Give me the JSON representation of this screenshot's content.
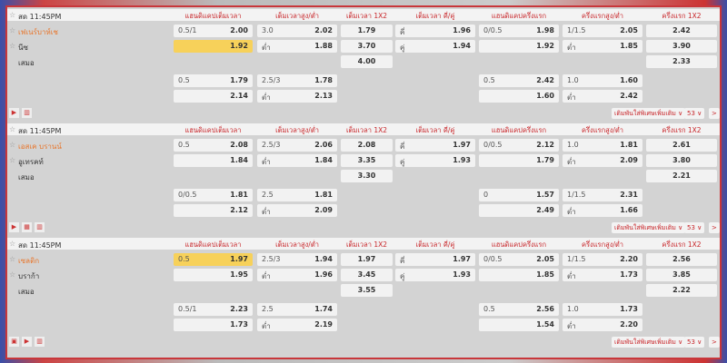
{
  "columns": [
    "แฮนดิแคปเต็มเวลา",
    "เต็มเวลาสูง/ต่ำ",
    "เต็มเวลา 1X2",
    "เต็มเวลา คี่/คู่",
    "แฮนดิแคปครึ่งแรก",
    "ครึ่งแรกสูง/ต่ำ",
    "ครึ่งแรก 1X2"
  ],
  "footer": {
    "more_bets": "เดิมพันใส่พิเศษเพิ่มเติม ∨",
    "count": "53 ∨",
    "next": ">"
  },
  "colors": {
    "accent": "#c8262a",
    "home_team": "#e8772e",
    "highlight": "#f7d15a"
  },
  "matches": [
    {
      "time": "สด 11:45PM",
      "home": "เฟเนร์บาห์เช",
      "away": "นีซ",
      "draw": "เสมอ",
      "rows": [
        [
          {
            "l": "0.5/1",
            "v": "2.00"
          },
          {
            "l": "3.0",
            "v": "2.02"
          },
          {
            "v": "1.79"
          },
          {
            "l": "คี่",
            "v": "1.96"
          },
          {
            "l": "0/0.5",
            "v": "1.98"
          },
          {
            "l": "1/1.5",
            "v": "2.05"
          },
          {
            "v": "2.42"
          }
        ],
        [
          {
            "l": "",
            "v": "1.92",
            "hl": true
          },
          {
            "l": "ต่ำ",
            "v": "1.88"
          },
          {
            "v": "3.70"
          },
          {
            "l": "คู่",
            "v": "1.94"
          },
          {
            "l": "",
            "v": "1.92"
          },
          {
            "l": "ต่ำ",
            "v": "1.85"
          },
          {
            "v": "3.90"
          }
        ],
        [
          null,
          null,
          {
            "v": "4.00"
          },
          null,
          null,
          null,
          {
            "v": "2.33"
          }
        ],
        [
          {
            "l": "0.5",
            "v": "1.79"
          },
          {
            "l": "2.5/3",
            "v": "1.78"
          },
          null,
          null,
          {
            "l": "0.5",
            "v": "2.42"
          },
          {
            "l": "1.0",
            "v": "1.60"
          },
          null
        ],
        [
          {
            "l": "",
            "v": "2.14"
          },
          {
            "l": "ต่ำ",
            "v": "2.13"
          },
          null,
          null,
          {
            "l": "",
            "v": "1.60"
          },
          {
            "l": "ต่ำ",
            "v": "2.42"
          },
          null
        ]
      ],
      "icons": [
        "play-icon",
        "stats-icon"
      ]
    },
    {
      "time": "สด 11:45PM",
      "home": "เอสเค บรานน์",
      "away": "อูเทรคท์",
      "draw": "เสมอ",
      "rows": [
        [
          {
            "l": "0.5",
            "v": "2.08"
          },
          {
            "l": "2.5/3",
            "v": "2.06"
          },
          {
            "v": "2.08"
          },
          {
            "l": "คี่",
            "v": "1.97"
          },
          {
            "l": "0/0.5",
            "v": "2.12"
          },
          {
            "l": "1.0",
            "v": "1.81"
          },
          {
            "v": "2.61"
          }
        ],
        [
          {
            "l": "",
            "v": "1.84"
          },
          {
            "l": "ต่ำ",
            "v": "1.84"
          },
          {
            "v": "3.35"
          },
          {
            "l": "คู่",
            "v": "1.93"
          },
          {
            "l": "",
            "v": "1.79"
          },
          {
            "l": "ต่ำ",
            "v": "2.09"
          },
          {
            "v": "3.80"
          }
        ],
        [
          null,
          null,
          {
            "v": "3.30"
          },
          null,
          null,
          null,
          {
            "v": "2.21"
          }
        ],
        [
          {
            "l": "0/0.5",
            "v": "1.81"
          },
          {
            "l": "2.5",
            "v": "1.81"
          },
          null,
          null,
          {
            "l": "0",
            "v": "1.57"
          },
          {
            "l": "1/1.5",
            "v": "2.31"
          },
          null
        ],
        [
          {
            "l": "",
            "v": "2.12"
          },
          {
            "l": "ต่ำ",
            "v": "2.09"
          },
          null,
          null,
          {
            "l": "",
            "v": "2.49"
          },
          {
            "l": "ต่ำ",
            "v": "1.66"
          },
          null
        ]
      ],
      "icons": [
        "play-icon",
        "field-icon",
        "stats-icon"
      ]
    },
    {
      "time": "สด 11:45PM",
      "home": "เซลติก",
      "away": "บราก้า",
      "draw": "เสมอ",
      "rows": [
        [
          {
            "l": "0.5",
            "v": "1.97",
            "hl": true
          },
          {
            "l": "2.5/3",
            "v": "1.94"
          },
          {
            "v": "1.97"
          },
          {
            "l": "คี่",
            "v": "1.97"
          },
          {
            "l": "0/0.5",
            "v": "2.05"
          },
          {
            "l": "1/1.5",
            "v": "2.20"
          },
          {
            "v": "2.56"
          }
        ],
        [
          {
            "l": "",
            "v": "1.95"
          },
          {
            "l": "ต่ำ",
            "v": "1.96"
          },
          {
            "v": "3.45"
          },
          {
            "l": "คู่",
            "v": "1.93"
          },
          {
            "l": "",
            "v": "1.85"
          },
          {
            "l": "ต่ำ",
            "v": "1.73"
          },
          {
            "v": "3.85"
          }
        ],
        [
          null,
          null,
          {
            "v": "3.55"
          },
          null,
          null,
          null,
          {
            "v": "2.22"
          }
        ],
        [
          {
            "l": "0.5/1",
            "v": "2.23"
          },
          {
            "l": "2.5",
            "v": "1.74"
          },
          null,
          null,
          {
            "l": "0.5",
            "v": "2.56"
          },
          {
            "l": "1.0",
            "v": "1.73"
          },
          null
        ],
        [
          {
            "l": "",
            "v": "1.73"
          },
          {
            "l": "ต่ำ",
            "v": "2.19"
          },
          null,
          null,
          {
            "l": "",
            "v": "1.54"
          },
          {
            "l": "ต่ำ",
            "v": "2.20"
          },
          null
        ]
      ],
      "icons": [
        "tv-icon",
        "play-icon",
        "stats-icon"
      ]
    }
  ]
}
